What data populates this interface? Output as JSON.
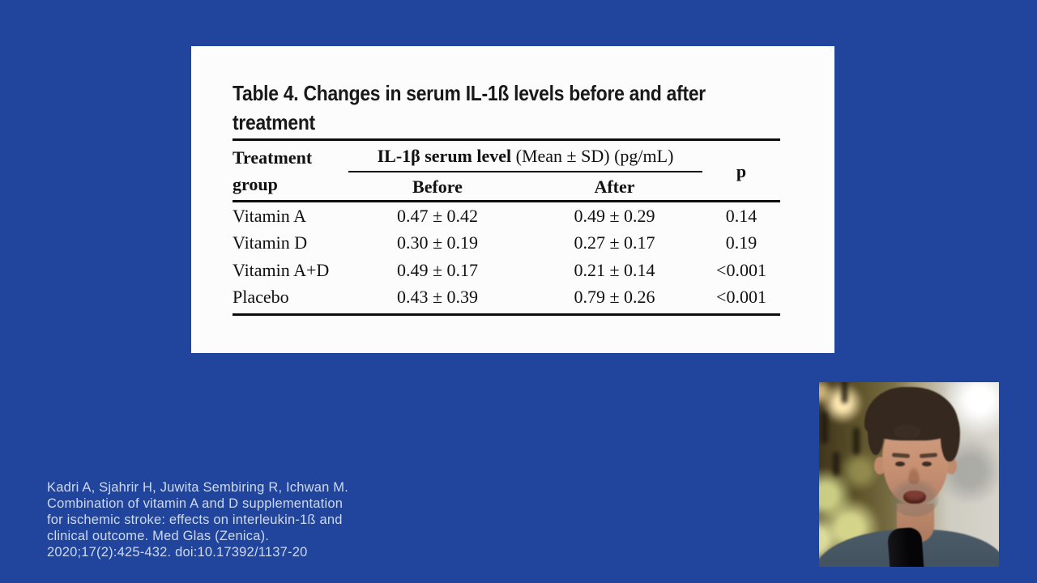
{
  "colors": {
    "background": "#21459c",
    "card": "#fcfcfc",
    "citation_text": "#cdd9ee",
    "shirt": "#44545f"
  },
  "table_card": {
    "title_lines": [
      "Table 4. Changes in serum IL-1ß levels before and after",
      "treatment"
    ],
    "header": {
      "col_group_label": "Treatment group",
      "span_label_bold": "IL-1β serum level",
      "span_label_normal": " (Mean ± SD) (pg/mL)",
      "col_before": "Before",
      "col_after": "After",
      "col_p": "p"
    }
  },
  "chart_data": {
    "type": "table",
    "title": "Table 4. Changes in serum IL-1ß levels before and after treatment",
    "column_group_header": "IL-1β serum level (Mean ± SD) (pg/mL)",
    "columns": [
      "Treatment group",
      "Before",
      "After",
      "p"
    ],
    "rows": [
      [
        "Vitamin A",
        "0.47 ± 0.42",
        "0.49 ± 0.29",
        "0.14"
      ],
      [
        "Vitamin D",
        "0.30 ± 0.19",
        "0.27 ± 0.17",
        "0.19"
      ],
      [
        "Vitamin A+D",
        "0.49 ± 0.17",
        "0.21 ± 0.14",
        "<0.001"
      ],
      [
        "Placebo",
        "0.43 ± 0.39",
        "0.79 ± 0.26",
        "<0.001"
      ]
    ]
  },
  "citation": {
    "lines": [
      "Kadri A, Sjahrir H, Juwita Sembiring R, Ichwan M.",
      "Combination of vitamin A and D supplementation",
      "for ischemic stroke: effects on interleukin-1ß and",
      "clinical outcome. Med Glas (Zenica).",
      "2020;17(2):425-432. doi:10.17392/1137-20"
    ]
  }
}
